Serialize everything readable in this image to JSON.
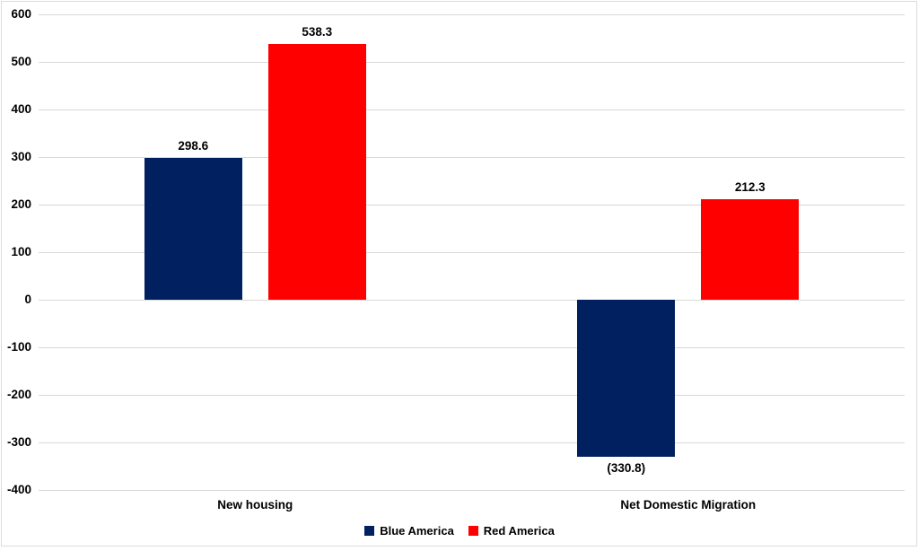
{
  "chart": {
    "background": "#ffffff",
    "frame_color": "#dcdcdc",
    "text_color": "#000000"
  },
  "chart_data": {
    "type": "bar",
    "title": "",
    "xlabel": "",
    "ylabel": "",
    "categories": [
      "New housing",
      "Net Domestic Migration"
    ],
    "series": [
      {
        "name": "Blue America",
        "color": "#002060",
        "values": [
          298.6,
          -330.8
        ],
        "labels": [
          "298.6",
          "(330.8)"
        ]
      },
      {
        "name": "Red America",
        "color": "#ff0000",
        "values": [
          538.3,
          212.3
        ],
        "labels": [
          "538.3",
          "212.3"
        ]
      }
    ],
    "ylim": [
      -400,
      600
    ],
    "yticks": [
      600,
      500,
      400,
      300,
      200,
      100,
      0,
      -100,
      -200,
      -300,
      -400
    ],
    "grid": true,
    "gridline_color": "#d9d9d9",
    "legend_position": "bottom"
  }
}
